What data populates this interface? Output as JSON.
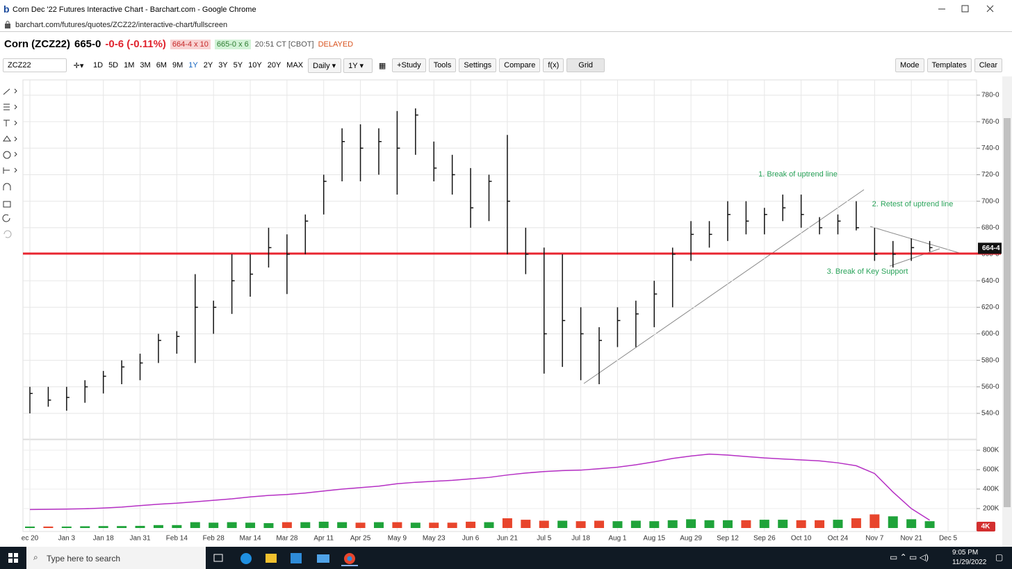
{
  "window": {
    "title": "Corn Dec '22 Futures Interactive Chart - Barchart.com - Google Chrome",
    "url": "barchart.com/futures/quotes/ZCZ22/interactive-chart/fullscreen"
  },
  "header": {
    "symbol": "Corn (ZCZ22)",
    "last": "665-0",
    "change": "-0-6 (-0.11%)",
    "bid": "664-4 x 10",
    "ask": "665-0 x 6",
    "time": "20:51 CT [CBOT]",
    "status": "DELAYED"
  },
  "toolbar": {
    "search": "ZCZ22",
    "ranges": [
      "1D",
      "5D",
      "1M",
      "3M",
      "6M",
      "9M",
      "1Y",
      "2Y",
      "3Y",
      "5Y",
      "10Y",
      "20Y",
      "MAX"
    ],
    "interval": "Daily",
    "period": "1Y",
    "buttons": [
      "+Study",
      "Tools",
      "Settings",
      "Compare",
      "f(x)",
      "Grid"
    ],
    "right_buttons": [
      "Mode",
      "Templates",
      "Clear"
    ]
  },
  "chart_data": [
    {
      "type": "ohlc",
      "categories": [
        "ec 20",
        null,
        "Jan 3",
        null,
        "Jan 18",
        null,
        "Jan 31",
        null,
        "Feb 14",
        null,
        "Feb 28",
        null,
        "Mar 14",
        null,
        "Mar 28",
        null,
        "Apr 11",
        null,
        "Apr 25",
        null,
        "May 9",
        null,
        "May 23",
        null,
        "Jun 6",
        null,
        "Jun 21",
        null,
        "Jul 5",
        null,
        "Jul 18",
        null,
        "Aug 1",
        null,
        "Aug 15",
        null,
        "Aug 29",
        null,
        "Sep 12",
        null,
        "Sep 26",
        null,
        "Oct 10",
        null,
        "Oct 24",
        null,
        "Nov 7",
        null,
        "Nov 21",
        null,
        "Dec 5"
      ],
      "high": [
        560,
        560,
        560,
        565,
        572,
        580,
        585,
        600,
        602,
        645,
        625,
        660,
        660,
        680,
        675,
        690,
        720,
        755,
        758,
        755,
        768,
        770,
        745,
        735,
        725,
        720,
        750,
        680,
        665,
        660,
        620,
        605,
        620,
        625,
        640,
        665,
        685,
        685,
        700,
        700,
        695,
        705,
        705,
        688,
        690,
        700,
        680,
        670,
        672,
        670,
        null
      ],
      "low": [
        540,
        545,
        542,
        548,
        555,
        562,
        565,
        578,
        585,
        578,
        600,
        615,
        628,
        650,
        630,
        660,
        690,
        715,
        715,
        720,
        705,
        735,
        715,
        705,
        680,
        685,
        660,
        645,
        570,
        575,
        565,
        562,
        590,
        590,
        605,
        620,
        655,
        665,
        670,
        675,
        675,
        685,
        680,
        675,
        675,
        678,
        655,
        650,
        655,
        662,
        null
      ],
      "close": [
        555,
        550,
        552,
        560,
        568,
        575,
        578,
        595,
        598,
        620,
        620,
        640,
        645,
        665,
        660,
        685,
        715,
        745,
        740,
        745,
        740,
        765,
        725,
        720,
        695,
        715,
        700,
        660,
        600,
        610,
        600,
        595,
        610,
        615,
        630,
        660,
        675,
        675,
        690,
        685,
        690,
        695,
        690,
        680,
        685,
        680,
        660,
        660,
        665,
        665,
        null
      ],
      "color": "#111111",
      "ylim": [
        520.6,
        791.5
      ],
      "yticks": [
        {
          "value": 540,
          "label": "540-0"
        },
        {
          "value": 560,
          "label": "560-0"
        },
        {
          "value": 580,
          "label": "580-0"
        },
        {
          "value": 600,
          "label": "600-0"
        },
        {
          "value": 620,
          "label": "620-0"
        },
        {
          "value": 640,
          "label": "640-0"
        },
        {
          "value": 660,
          "label": "660-0"
        },
        {
          "value": 680,
          "label": "680-0"
        },
        {
          "value": 700,
          "label": "700-0"
        },
        {
          "value": 720,
          "label": "720-0"
        },
        {
          "value": 740,
          "label": "740-0"
        },
        {
          "value": 760,
          "label": "760-0"
        },
        {
          "value": 780,
          "label": "780-0"
        }
      ],
      "grid": true,
      "key_level": 660.5,
      "key_color": "#e8242f",
      "last_price": {
        "value": 664.5,
        "label": "664-4"
      },
      "annotations": [
        "1. Break of uptrend line",
        "2. Retest of uptrend line",
        "3. Break of Key Support"
      ],
      "annotation_color": "#2aa35a"
    },
    {
      "type": "bar",
      "series": [
        {
          "type": "bar",
          "values": [
            15000,
            15000,
            15000,
            18000,
            20000,
            20000,
            22000,
            30000,
            30000,
            60000,
            55000,
            60000,
            55000,
            50000,
            60000,
            60000,
            65000,
            60000,
            55000,
            60000,
            60000,
            55000,
            55000,
            55000,
            65000,
            60000,
            100000,
            85000,
            75000,
            75000,
            70000,
            75000,
            70000,
            75000,
            70000,
            80000,
            90000,
            80000,
            80000,
            80000,
            85000,
            85000,
            80000,
            80000,
            85000,
            100000,
            140000,
            120000,
            90000,
            70000,
            null
          ]
        },
        {
          "type": "line",
          "color": "#b52fc4",
          "values": [
            190000,
            192000,
            195000,
            198000,
            205000,
            215000,
            230000,
            245000,
            255000,
            270000,
            285000,
            300000,
            320000,
            335000,
            345000,
            360000,
            380000,
            400000,
            415000,
            430000,
            455000,
            470000,
            480000,
            490000,
            505000,
            520000,
            545000,
            565000,
            580000,
            590000,
            595000,
            610000,
            625000,
            650000,
            680000,
            715000,
            740000,
            760000,
            750000,
            735000,
            720000,
            710000,
            700000,
            690000,
            670000,
            640000,
            560000,
            370000,
            200000,
            80000,
            null
          ]
        }
      ],
      "up_color": "#1fa33a",
      "down_color": "#e8452c",
      "ylim": [
        0,
        907000
      ],
      "yticks": [
        {
          "value": 200000,
          "label": "200K"
        },
        {
          "value": 400000,
          "label": "400K"
        },
        {
          "value": 600000,
          "label": "600K"
        },
        {
          "value": 800000,
          "label": "800K"
        }
      ]
    }
  ],
  "badge": "4K",
  "taskbar": {
    "search": "Type here to search",
    "time": "9:05 PM",
    "date": "11/29/2022"
  }
}
